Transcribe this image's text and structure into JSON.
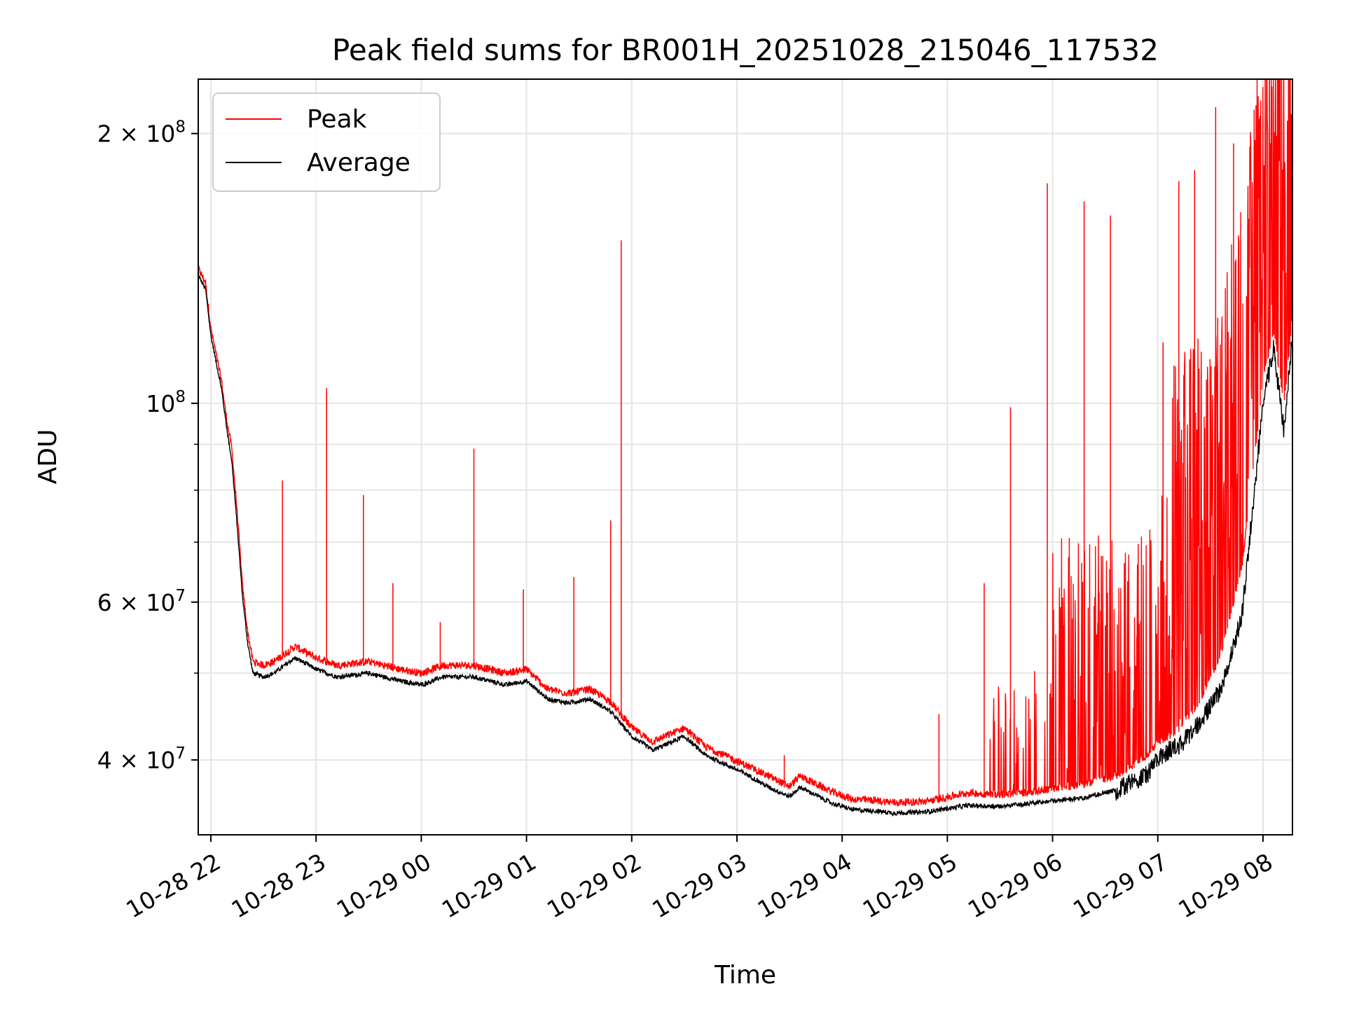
{
  "chart_data": {
    "type": "line",
    "title": "Peak field sums for BR001H_20251028_215046_117532",
    "xlabel": "Time",
    "ylabel": "ADU",
    "yscale": "log",
    "xlim_hours": [
      -0.12,
      10.28
    ],
    "ylim": [
      33000000,
      230000000
    ],
    "grid": true,
    "legend_position": "upper-left",
    "x_ticks": [
      {
        "label": "10-28 22",
        "hour": 0
      },
      {
        "label": "10-28 23",
        "hour": 1
      },
      {
        "label": "10-29 00",
        "hour": 2
      },
      {
        "label": "10-29 01",
        "hour": 3
      },
      {
        "label": "10-29 02",
        "hour": 4
      },
      {
        "label": "10-29 03",
        "hour": 5
      },
      {
        "label": "10-29 04",
        "hour": 6
      },
      {
        "label": "10-29 05",
        "hour": 7
      },
      {
        "label": "10-29 06",
        "hour": 8
      },
      {
        "label": "10-29 07",
        "hour": 9
      },
      {
        "label": "10-29 08",
        "hour": 10
      }
    ],
    "y_ticks": [
      {
        "base": "4 × 10",
        "exp": "7",
        "value": 40000000
      },
      {
        "base": "6 × 10",
        "exp": "7",
        "value": 60000000
      },
      {
        "base": "10",
        "exp": "8",
        "value": 100000000
      },
      {
        "base": "2 × 10",
        "exp": "8",
        "value": 200000000
      }
    ],
    "y_minor_ticks": [
      50000000,
      70000000,
      80000000,
      90000000
    ],
    "series": [
      {
        "name": "Peak",
        "color": "#ff0000",
        "x_hours": [
          -0.12,
          -0.05,
          0.0,
          0.1,
          0.15,
          0.2,
          0.25,
          0.3,
          0.35,
          0.4,
          0.5,
          0.6,
          0.8,
          1.0,
          1.2,
          1.5,
          1.8,
          2.0,
          2.2,
          2.5,
          2.8,
          3.0,
          3.2,
          3.4,
          3.6,
          3.8,
          4.0,
          4.2,
          4.3,
          4.5,
          4.7,
          4.9,
          5.1,
          5.3,
          5.5,
          5.6,
          5.9,
          6.1,
          6.3,
          6.5,
          6.8,
          7.0,
          7.2,
          7.5,
          7.8,
          8.0,
          8.3,
          8.6,
          8.9,
          9.0,
          9.1,
          9.2,
          9.4,
          9.6,
          9.8,
          10.0,
          10.1,
          10.2,
          10.28
        ],
        "values": [
          140000000,
          135000000,
          120000000,
          105000000,
          95000000,
          88000000,
          75000000,
          62000000,
          55000000,
          51000000,
          50500000,
          51000000,
          53000000,
          51500000,
          50500000,
          51000000,
          50000000,
          49500000,
          50500000,
          50500000,
          49500000,
          50000000,
          47500000,
          47000000,
          47500000,
          46000000,
          43000000,
          41500000,
          42000000,
          43000000,
          41000000,
          40000000,
          39000000,
          38000000,
          37000000,
          38000000,
          36500000,
          35800000,
          35700000,
          35500000,
          35600000,
          36000000,
          36400000,
          36200000,
          36500000,
          36800000,
          37200000,
          38000000,
          40000000,
          41500000,
          42000000,
          43000000,
          46000000,
          52000000,
          65000000,
          105000000,
          120000000,
          98000000,
          125000000
        ],
        "spikes": [
          {
            "hour": 0.68,
            "value": 82000000
          },
          {
            "hour": 1.1,
            "value": 104000000
          },
          {
            "hour": 1.45,
            "value": 79000000
          },
          {
            "hour": 1.73,
            "value": 63000000
          },
          {
            "hour": 2.18,
            "value": 57000000
          },
          {
            "hour": 2.5,
            "value": 89000000
          },
          {
            "hour": 2.97,
            "value": 62000000
          },
          {
            "hour": 3.45,
            "value": 64000000
          },
          {
            "hour": 3.8,
            "value": 74000000
          },
          {
            "hour": 3.9,
            "value": 152000000
          },
          {
            "hour": 5.45,
            "value": 40500000
          },
          {
            "hour": 6.92,
            "value": 45000000
          },
          {
            "hour": 7.35,
            "value": 63000000
          },
          {
            "hour": 7.6,
            "value": 99000000
          },
          {
            "hour": 7.95,
            "value": 176000000
          },
          {
            "hour": 8.3,
            "value": 168000000
          },
          {
            "hour": 8.55,
            "value": 162000000
          },
          {
            "hour": 9.05,
            "value": 117000000
          },
          {
            "hour": 9.2,
            "value": 177000000
          },
          {
            "hour": 9.35,
            "value": 182000000
          },
          {
            "hour": 9.55,
            "value": 214000000
          },
          {
            "hour": 9.72,
            "value": 195000000
          }
        ]
      },
      {
        "name": "Average",
        "color": "#000000",
        "x_hours": [
          -0.12,
          -0.05,
          0.0,
          0.1,
          0.15,
          0.2,
          0.25,
          0.3,
          0.35,
          0.4,
          0.5,
          0.6,
          0.8,
          1.0,
          1.2,
          1.5,
          1.8,
          2.0,
          2.2,
          2.5,
          2.8,
          3.0,
          3.2,
          3.4,
          3.6,
          3.8,
          4.0,
          4.2,
          4.3,
          4.5,
          4.7,
          4.9,
          5.1,
          5.3,
          5.5,
          5.6,
          5.9,
          6.1,
          6.3,
          6.5,
          6.8,
          7.0,
          7.2,
          7.5,
          7.8,
          8.0,
          8.3,
          8.6,
          8.9,
          9.0,
          9.1,
          9.2,
          9.4,
          9.6,
          9.8,
          10.0,
          10.1,
          10.2,
          10.28
        ],
        "values": [
          139000000,
          134000000,
          119000000,
          104000000,
          94000000,
          86000000,
          73000000,
          61000000,
          54000000,
          50000000,
          49500000,
          50000000,
          52000000,
          50500000,
          49500000,
          50000000,
          49000000,
          48500000,
          49500000,
          49500000,
          48500000,
          49000000,
          46800000,
          46300000,
          46800000,
          45300000,
          42500000,
          41000000,
          41500000,
          42500000,
          40500000,
          39500000,
          38500000,
          37300000,
          36400000,
          37300000,
          35800000,
          35200000,
          35100000,
          34900000,
          35000000,
          35300000,
          35600000,
          35500000,
          35800000,
          36000000,
          36300000,
          37000000,
          38500000,
          40000000,
          41000000,
          41500000,
          44000000,
          48000000,
          58000000,
          100000000,
          115000000,
          93000000,
          120000000
        ]
      }
    ]
  }
}
